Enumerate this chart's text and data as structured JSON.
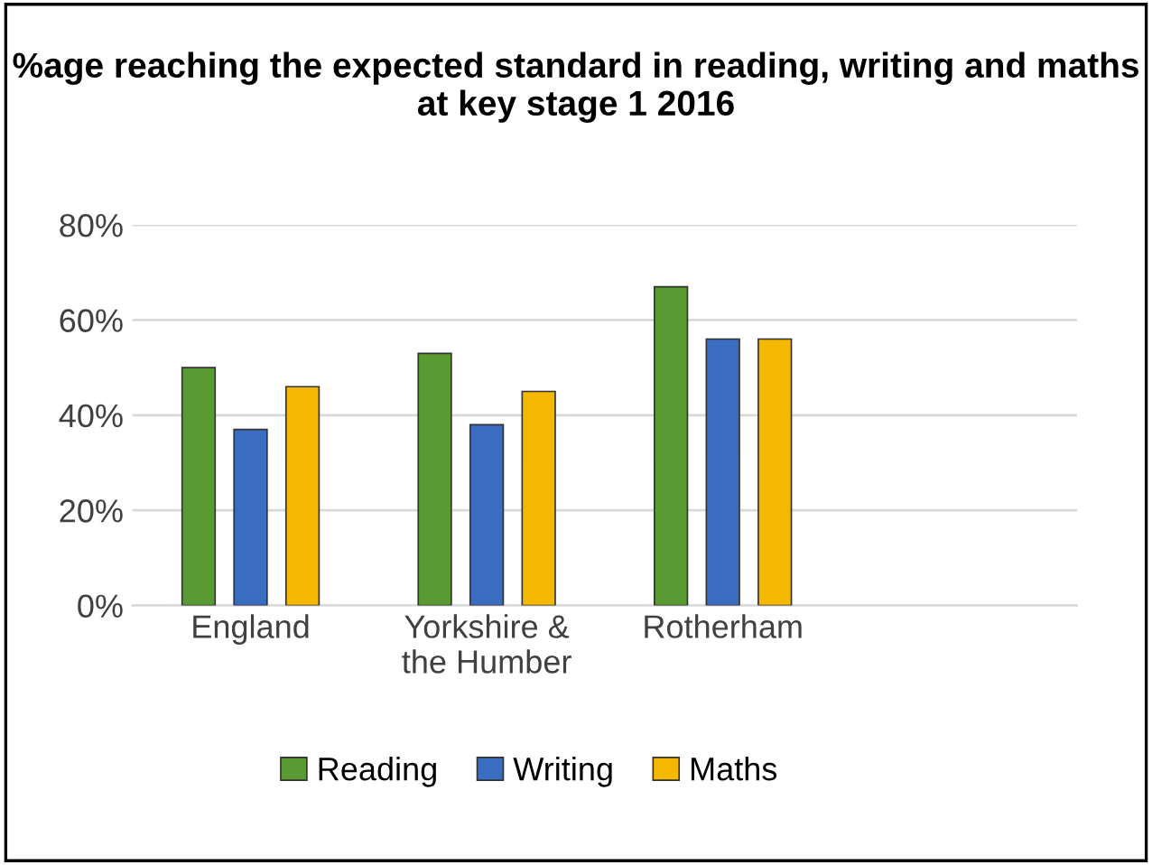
{
  "chart_data": {
    "type": "bar",
    "title": "%age reaching the expected standard in reading, writing and maths at key stage 1 2016",
    "categories": [
      "England",
      "Yorkshire &\nthe Humber",
      "Rotherham",
      null
    ],
    "series": [
      {
        "name": "Reading",
        "color": "#5a9a32",
        "values": [
          50,
          53,
          67,
          null
        ]
      },
      {
        "name": "Writing",
        "color": "#3a6cc0",
        "values": [
          37,
          38,
          56,
          null
        ]
      },
      {
        "name": "Maths",
        "color": "#f5b800",
        "values": [
          46,
          45,
          56,
          null
        ]
      }
    ],
    "ylim": [
      0,
      80
    ],
    "yticks": [
      {
        "value": 0,
        "label": "0%"
      },
      {
        "value": 20,
        "label": "20%"
      },
      {
        "value": 40,
        "label": "40%"
      },
      {
        "value": 60,
        "label": "60%"
      },
      {
        "value": 80,
        "label": "80%"
      }
    ],
    "grid": "y",
    "legend": "bottom"
  }
}
